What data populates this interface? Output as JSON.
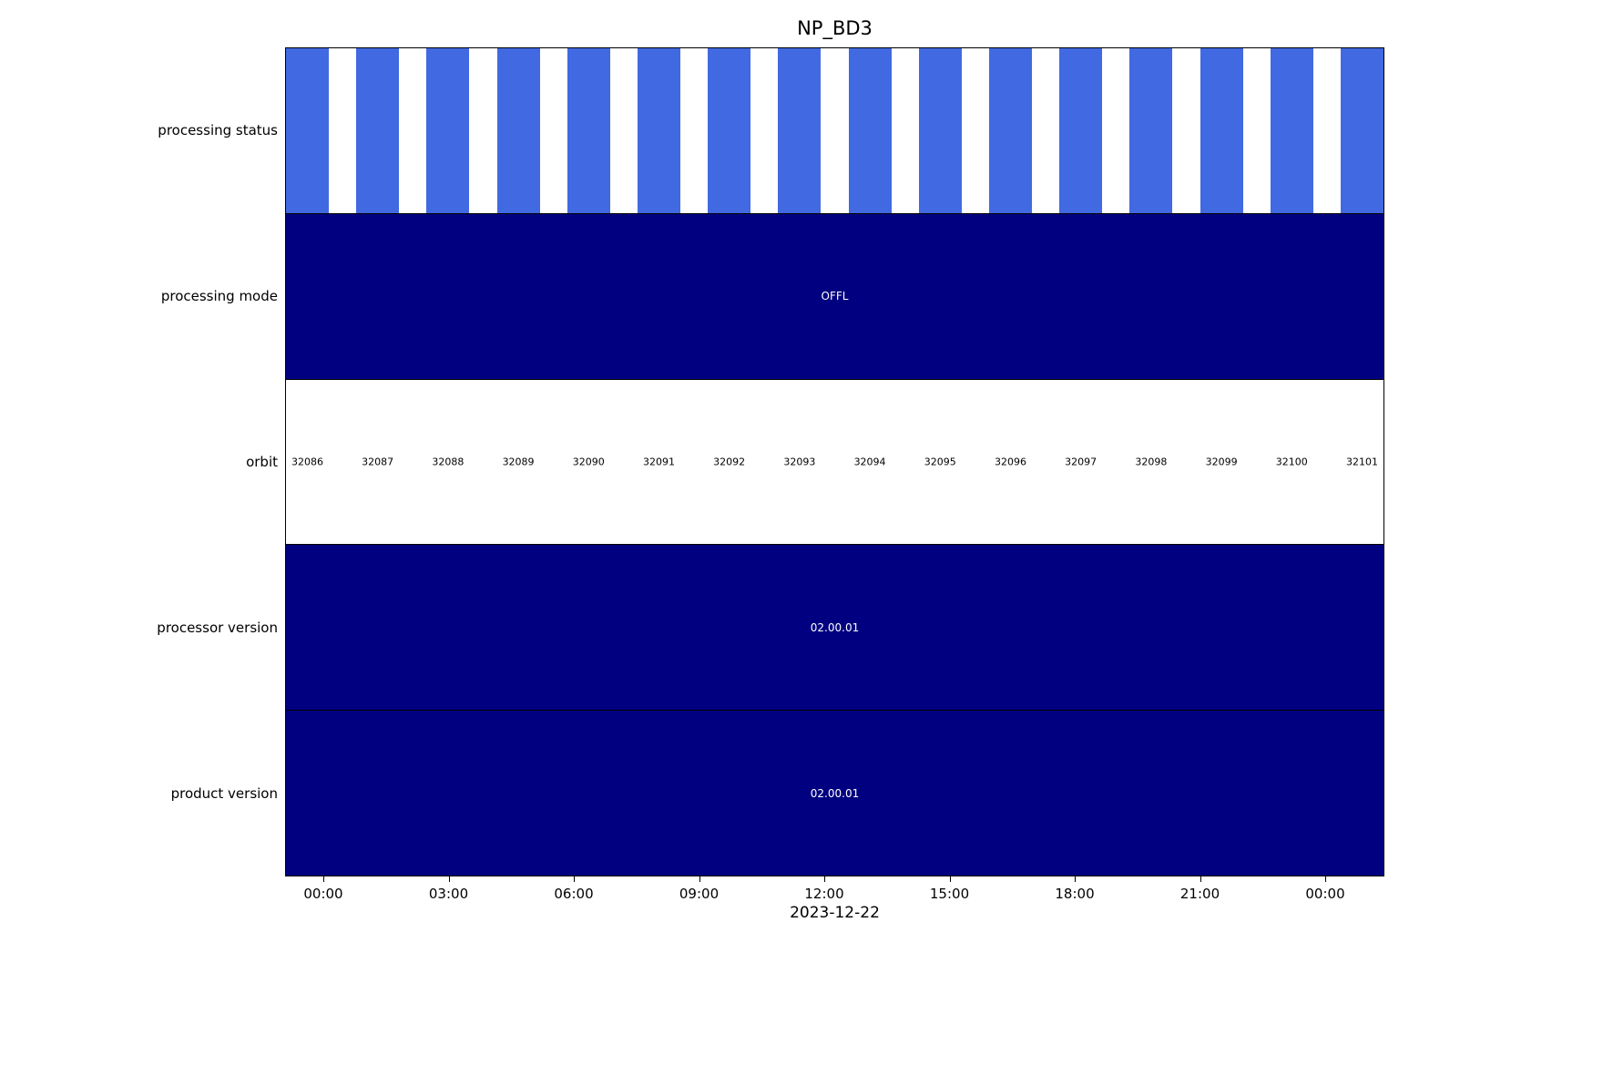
{
  "chart_data": {
    "type": "timeline",
    "title": "NP_BD3",
    "xlabel": "2023-12-22",
    "x_ticks": [
      "00:00",
      "03:00",
      "06:00",
      "09:00",
      "12:00",
      "15:00",
      "18:00",
      "21:00",
      "00:00"
    ],
    "rows": [
      {
        "label": "processing status",
        "kind": "stripes",
        "color": "#4169E1",
        "segments": 16
      },
      {
        "label": "processing mode",
        "kind": "solid",
        "color": "#000080",
        "value": "OFFL"
      },
      {
        "label": "orbit",
        "kind": "labels",
        "values": [
          "32086",
          "32087",
          "32088",
          "32089",
          "32090",
          "32091",
          "32092",
          "32093",
          "32094",
          "32095",
          "32096",
          "32097",
          "32098",
          "32099",
          "32100",
          "32101"
        ]
      },
      {
        "label": "processor version",
        "kind": "solid",
        "color": "#000080",
        "value": "02.00.01"
      },
      {
        "label": "product version",
        "kind": "solid",
        "color": "#000080",
        "value": "02.00.01"
      }
    ],
    "layout": {
      "orbit_spacing_pct": 6.4068,
      "stripe_width_pct": 3.8939,
      "tick_start_pct": 3.4797,
      "tick_spacing_pct": 11.392,
      "grid": false,
      "legend": "none"
    },
    "colors": {
      "stripe_blue": "#4169E1",
      "bar_navy": "#000080",
      "text_on_bar": "#FFFFFF"
    }
  }
}
